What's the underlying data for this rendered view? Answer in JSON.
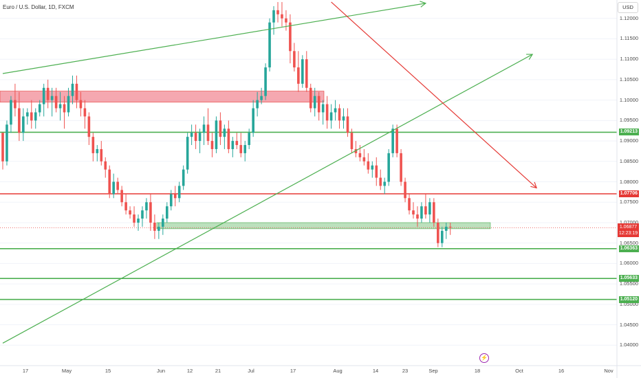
{
  "header": {
    "title": "Euro / U.S. Dollar, 1D, FXCM",
    "currency": "USD"
  },
  "colors": {
    "up": "#26a69a",
    "down": "#ef5350",
    "green_line": "#4caf50",
    "red_line": "#e53935",
    "resistance_zone": "#f28b95",
    "support_zone": "#a5d6a7"
  },
  "price_axis": {
    "ticks": [
      "1.12000",
      "1.11500",
      "1.11000",
      "1.10500",
      "1.10000",
      "1.09500",
      "1.09000",
      "1.08500",
      "1.08000",
      "1.07500",
      "1.07000",
      "1.06500",
      "1.06000",
      "1.05500",
      "1.05000",
      "1.04500",
      "1.04000"
    ],
    "level_badges": [
      "1.09213",
      "1.07706",
      "1.06363",
      "1.05633",
      "1.05120"
    ],
    "last_price": "1.06877",
    "countdown": "12:23:19"
  },
  "time_axis": {
    "ticks": [
      "17",
      "May",
      "15",
      "Jun",
      "12",
      "21",
      "Jul",
      "17",
      "Aug",
      "14",
      "23",
      "Sep",
      "18",
      "Oct",
      "16",
      "Nov"
    ]
  },
  "chart_data": {
    "type": "candlestick",
    "symbol": "EURUSD",
    "interval": "1D",
    "ylim": [
      1.035,
      1.1245
    ],
    "horizontal_levels": [
      {
        "price": 1.09213,
        "color": "green"
      },
      {
        "price": 1.07706,
        "color": "red"
      },
      {
        "price": 1.06363,
        "color": "green"
      },
      {
        "price": 1.05633,
        "color": "green"
      },
      {
        "price": 1.0512,
        "color": "green"
      }
    ],
    "zones": [
      {
        "from": 1.0995,
        "to": 1.1022,
        "color": "red"
      },
      {
        "from": 1.0685,
        "to": 1.07,
        "color": "green"
      }
    ],
    "trendlines": [
      {
        "from": [
          0,
          1.1065
        ],
        "to": [
          103,
          1.1237
        ],
        "color": "green",
        "arrow": true
      },
      {
        "from": [
          0,
          1.0405
        ],
        "to": [
          129,
          1.1112
        ],
        "color": "green",
        "arrow": true
      },
      {
        "from": [
          80,
          1.124
        ],
        "to": [
          130,
          1.0785
        ],
        "color": "red",
        "arrow": true
      }
    ],
    "last_price": 1.06877,
    "candles_ohlc": [
      [
        1.092,
        1.092,
        1.083,
        1.085
      ],
      [
        1.085,
        1.095,
        1.084,
        1.094
      ],
      [
        1.094,
        1.101,
        1.092,
        1.1
      ],
      [
        1.1,
        1.104,
        1.096,
        1.098
      ],
      [
        1.098,
        1.102,
        1.09,
        1.092
      ],
      [
        1.092,
        1.098,
        1.09,
        1.096
      ],
      [
        1.096,
        1.098,
        1.094,
        1.097
      ],
      [
        1.097,
        1.1,
        1.093,
        1.095
      ],
      [
        1.095,
        1.098,
        1.093,
        1.097
      ],
      [
        1.097,
        1.1,
        1.096,
        1.099
      ],
      [
        1.099,
        1.104,
        1.096,
        1.103
      ],
      [
        1.103,
        1.105,
        1.098,
        1.1
      ],
      [
        1.1,
        1.103,
        1.096,
        1.101
      ],
      [
        1.101,
        1.103,
        1.097,
        1.098
      ],
      [
        1.098,
        1.102,
        1.095,
        1.099
      ],
      [
        1.099,
        1.101,
        1.093,
        1.097
      ],
      [
        1.097,
        1.103,
        1.096,
        1.101
      ],
      [
        1.101,
        1.106,
        1.099,
        1.104
      ],
      [
        1.104,
        1.106,
        1.098,
        1.1
      ],
      [
        1.1,
        1.102,
        1.096,
        1.098
      ],
      [
        1.098,
        1.1,
        1.093,
        1.096
      ],
      [
        1.096,
        1.097,
        1.089,
        1.091
      ],
      [
        1.091,
        1.092,
        1.085,
        1.087
      ],
      [
        1.087,
        1.089,
        1.085,
        1.088
      ],
      [
        1.088,
        1.09,
        1.084,
        1.085
      ],
      [
        1.085,
        1.086,
        1.081,
        1.083
      ],
      [
        1.083,
        1.084,
        1.076,
        1.077
      ],
      [
        1.077,
        1.082,
        1.076,
        1.08
      ],
      [
        1.08,
        1.081,
        1.077,
        1.078
      ],
      [
        1.078,
        1.079,
        1.074,
        1.075
      ],
      [
        1.075,
        1.077,
        1.072,
        1.073
      ],
      [
        1.073,
        1.074,
        1.071,
        1.072
      ],
      [
        1.072,
        1.074,
        1.069,
        1.07
      ],
      [
        1.07,
        1.072,
        1.068,
        1.071
      ],
      [
        1.071,
        1.074,
        1.069,
        1.073
      ],
      [
        1.073,
        1.076,
        1.071,
        1.075
      ],
      [
        1.075,
        1.077,
        1.068,
        1.07
      ],
      [
        1.07,
        1.072,
        1.066,
        1.068
      ],
      [
        1.068,
        1.07,
        1.066,
        1.069
      ],
      [
        1.069,
        1.072,
        1.067,
        1.071
      ],
      [
        1.071,
        1.075,
        1.07,
        1.074
      ],
      [
        1.074,
        1.078,
        1.073,
        1.077
      ],
      [
        1.077,
        1.079,
        1.074,
        1.076
      ],
      [
        1.076,
        1.08,
        1.075,
        1.079
      ],
      [
        1.079,
        1.084,
        1.078,
        1.083
      ],
      [
        1.083,
        1.092,
        1.082,
        1.091
      ],
      [
        1.091,
        1.094,
        1.089,
        1.092
      ],
      [
        1.092,
        1.094,
        1.088,
        1.09
      ],
      [
        1.09,
        1.093,
        1.087,
        1.092
      ],
      [
        1.092,
        1.096,
        1.089,
        1.094
      ],
      [
        1.094,
        1.098,
        1.089,
        1.09
      ],
      [
        1.09,
        1.092,
        1.086,
        1.088
      ],
      [
        1.088,
        1.096,
        1.087,
        1.095
      ],
      [
        1.095,
        1.097,
        1.089,
        1.091
      ],
      [
        1.091,
        1.094,
        1.088,
        1.093
      ],
      [
        1.093,
        1.095,
        1.087,
        1.088
      ],
      [
        1.088,
        1.091,
        1.086,
        1.09
      ],
      [
        1.09,
        1.092,
        1.088,
        1.089
      ],
      [
        1.089,
        1.092,
        1.086,
        1.087
      ],
      [
        1.087,
        1.09,
        1.085,
        1.089
      ],
      [
        1.089,
        1.093,
        1.088,
        1.092
      ],
      [
        1.092,
        1.1,
        1.091,
        1.098
      ],
      [
        1.098,
        1.102,
        1.096,
        1.1
      ],
      [
        1.1,
        1.103,
        1.099,
        1.101
      ],
      [
        1.101,
        1.109,
        1.1,
        1.108
      ],
      [
        1.108,
        1.12,
        1.107,
        1.119
      ],
      [
        1.119,
        1.123,
        1.116,
        1.122
      ],
      [
        1.122,
        1.124,
        1.119,
        1.121
      ],
      [
        1.121,
        1.124,
        1.118,
        1.12
      ],
      [
        1.12,
        1.122,
        1.117,
        1.119
      ],
      [
        1.119,
        1.121,
        1.109,
        1.112
      ],
      [
        1.112,
        1.114,
        1.107,
        1.108
      ],
      [
        1.108,
        1.112,
        1.102,
        1.104
      ],
      [
        1.104,
        1.111,
        1.103,
        1.11
      ],
      [
        1.11,
        1.112,
        1.102,
        1.103
      ],
      [
        1.103,
        1.104,
        1.097,
        1.098
      ],
      [
        1.098,
        1.103,
        1.096,
        1.101
      ],
      [
        1.101,
        1.102,
        1.095,
        1.097
      ],
      [
        1.097,
        1.1,
        1.094,
        1.099
      ],
      [
        1.099,
        1.101,
        1.093,
        1.095
      ],
      [
        1.095,
        1.099,
        1.093,
        1.097
      ],
      [
        1.097,
        1.1,
        1.095,
        1.098
      ],
      [
        1.098,
        1.099,
        1.093,
        1.095
      ],
      [
        1.095,
        1.098,
        1.093,
        1.096
      ],
      [
        1.096,
        1.098,
        1.091,
        1.092
      ],
      [
        1.092,
        1.093,
        1.087,
        1.088
      ],
      [
        1.088,
        1.09,
        1.086,
        1.087
      ],
      [
        1.087,
        1.089,
        1.085,
        1.086
      ],
      [
        1.086,
        1.088,
        1.084,
        1.085
      ],
      [
        1.085,
        1.087,
        1.082,
        1.083
      ],
      [
        1.083,
        1.085,
        1.081,
        1.084
      ],
      [
        1.084,
        1.086,
        1.079,
        1.081
      ],
      [
        1.081,
        1.083,
        1.078,
        1.079
      ],
      [
        1.079,
        1.081,
        1.077,
        1.08
      ],
      [
        1.08,
        1.088,
        1.079,
        1.087
      ],
      [
        1.087,
        1.094,
        1.086,
        1.093
      ],
      [
        1.093,
        1.094,
        1.086,
        1.087
      ],
      [
        1.087,
        1.088,
        1.079,
        1.08
      ],
      [
        1.08,
        1.081,
        1.075,
        1.076
      ],
      [
        1.076,
        1.077,
        1.072,
        1.073
      ],
      [
        1.073,
        1.075,
        1.071,
        1.072
      ],
      [
        1.072,
        1.074,
        1.069,
        1.071
      ],
      [
        1.071,
        1.075,
        1.07,
        1.074
      ],
      [
        1.074,
        1.077,
        1.071,
        1.072
      ],
      [
        1.072,
        1.076,
        1.07,
        1.075
      ],
      [
        1.075,
        1.076,
        1.069,
        1.07
      ],
      [
        1.07,
        1.071,
        1.064,
        1.065
      ],
      [
        1.065,
        1.069,
        1.064,
        1.068
      ],
      [
        1.068,
        1.07,
        1.066,
        1.069
      ],
      [
        1.069,
        1.07,
        1.067,
        1.0688
      ]
    ]
  }
}
